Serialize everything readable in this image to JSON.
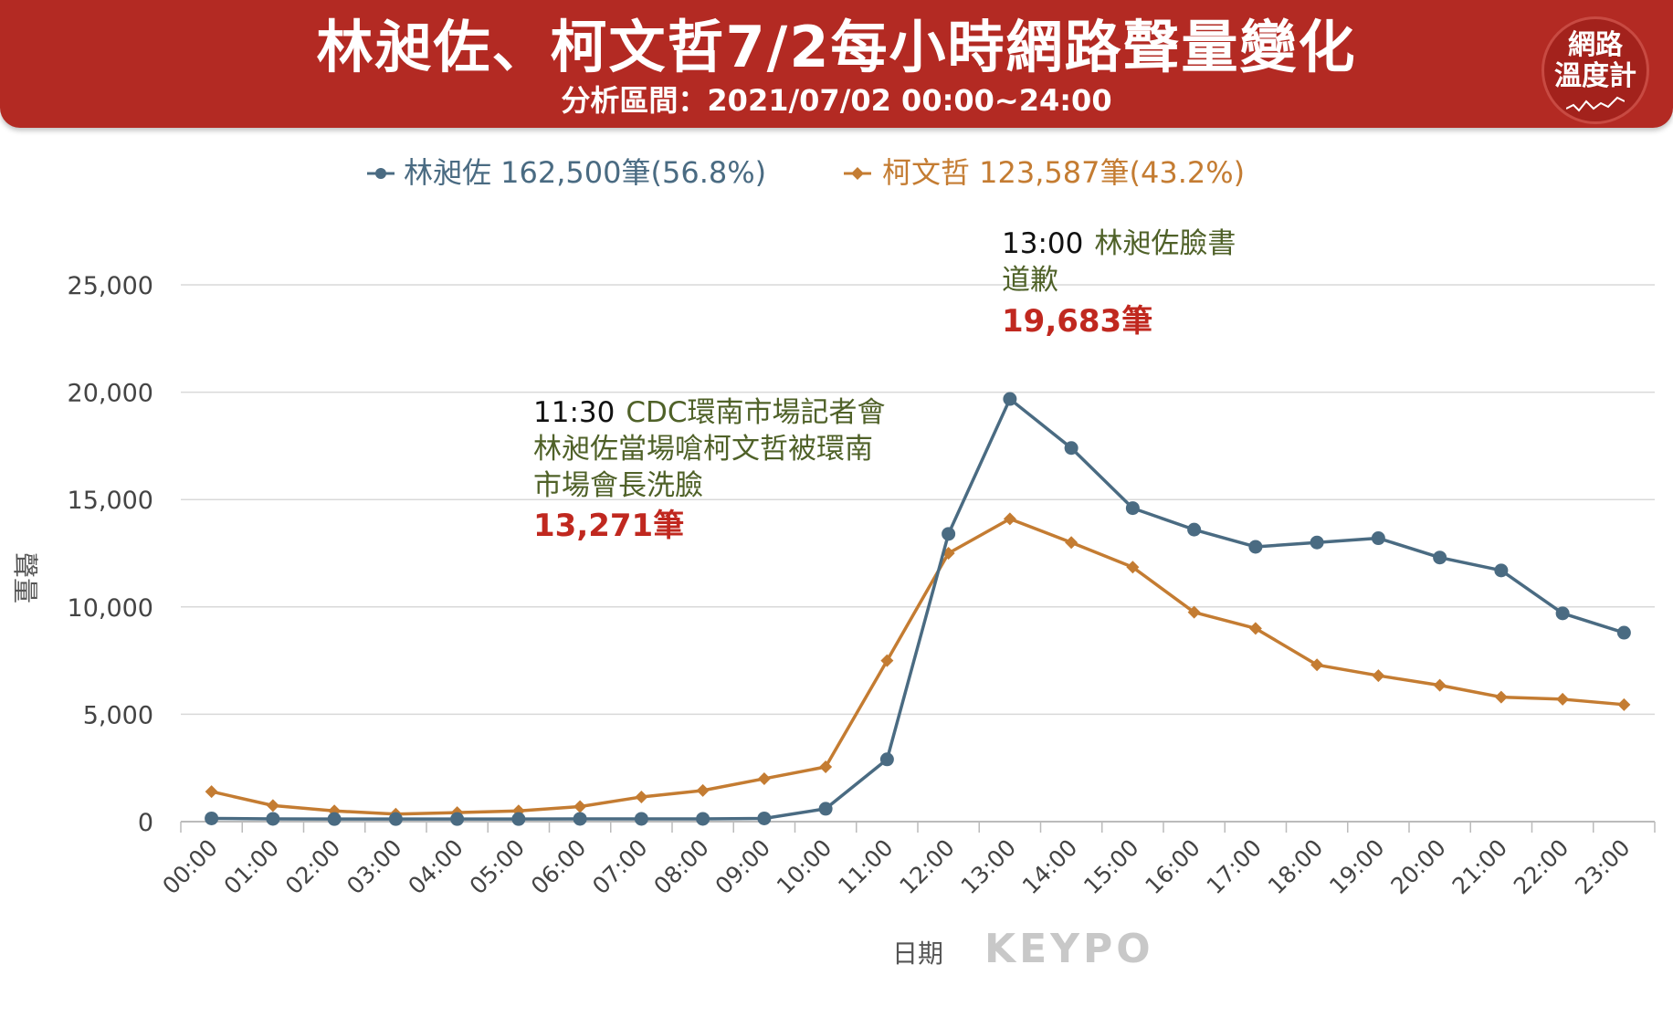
{
  "header": {
    "title": "林昶佐、柯文哲7/2每小時網路聲量變化",
    "subtitle": "分析區間：2021/07/02 00:00~24:00",
    "badge_line1": "網路",
    "badge_line2": "溫度計"
  },
  "legend": {
    "series1": "林昶佐 162,500筆(56.8%)",
    "series2": "柯文哲 123,587筆(43.2%)"
  },
  "annotations": {
    "a1_time": "11:30",
    "a1_line1": "CDC環南市場記者會",
    "a1_line2": "林昶佐當場嗆柯文哲被環南",
    "a1_line3": "市場會長洗臉",
    "a1_value": "13,271筆",
    "a2_time": "13:00",
    "a2_line1": "林昶佐臉書",
    "a2_line2": "道歉",
    "a2_value": "19,683筆"
  },
  "watermark": "KEYPO",
  "colors": {
    "series1": "#4a6b82",
    "series2": "#c47c32",
    "banner": "#b32a23",
    "annotation_text": "#4f6128",
    "annotation_value": "#c0281f",
    "grid": "#d9d9d9"
  },
  "chart_data": {
    "type": "line",
    "title": "",
    "xlabel": "日期",
    "ylabel": "聲量",
    "ylim": [
      0,
      25000
    ],
    "yticks": [
      0,
      5000,
      10000,
      15000,
      20000,
      25000
    ],
    "ytick_labels": [
      "0",
      "5,000",
      "10,000",
      "15,000",
      "20,000",
      "25,000"
    ],
    "grid": true,
    "legend_position": "top-center",
    "categories": [
      "00:00",
      "01:00",
      "02:00",
      "03:00",
      "04:00",
      "05:00",
      "06:00",
      "07:00",
      "08:00",
      "09:00",
      "10:00",
      "11:00",
      "12:00",
      "13:00",
      "14:00",
      "15:00",
      "16:00",
      "17:00",
      "18:00",
      "19:00",
      "20:00",
      "21:00",
      "22:00",
      "23:00"
    ],
    "series": [
      {
        "name": "林昶佐",
        "marker": "circle",
        "values": [
          150,
          130,
          120,
          120,
          120,
          120,
          130,
          130,
          130,
          150,
          600,
          2900,
          13400,
          19683,
          17400,
          14600,
          13600,
          12800,
          13000,
          13200,
          12300,
          11700,
          9700,
          8800
        ]
      },
      {
        "name": "柯文哲",
        "marker": "diamond",
        "values": [
          1400,
          750,
          500,
          350,
          420,
          500,
          700,
          1150,
          1450,
          2000,
          2550,
          7500,
          12500,
          14100,
          13000,
          11850,
          9750,
          9000,
          7300,
          6800,
          6350,
          5800,
          5700,
          5450
        ]
      }
    ]
  }
}
